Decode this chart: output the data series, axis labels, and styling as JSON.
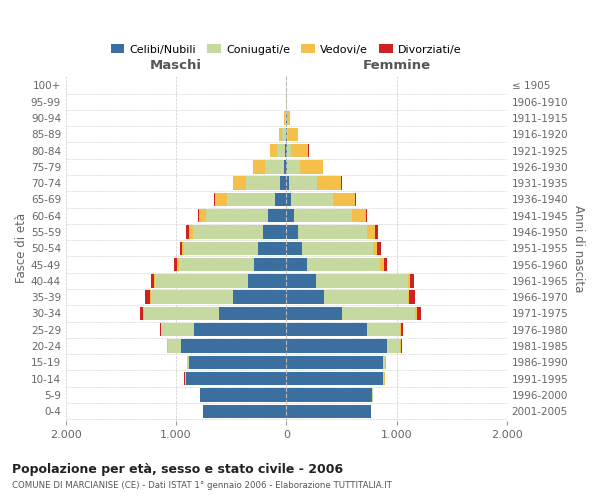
{
  "age_groups": [
    "0-4",
    "5-9",
    "10-14",
    "15-19",
    "20-24",
    "25-29",
    "30-34",
    "35-39",
    "40-44",
    "45-49",
    "50-54",
    "55-59",
    "60-64",
    "65-69",
    "70-74",
    "75-79",
    "80-84",
    "85-89",
    "90-94",
    "95-99",
    "100+"
  ],
  "birth_years": [
    "2001-2005",
    "1996-2000",
    "1991-1995",
    "1986-1990",
    "1981-1985",
    "1976-1980",
    "1971-1975",
    "1966-1970",
    "1961-1965",
    "1956-1960",
    "1951-1955",
    "1946-1950",
    "1941-1945",
    "1936-1940",
    "1931-1935",
    "1926-1930",
    "1921-1925",
    "1916-1920",
    "1911-1915",
    "1906-1910",
    "≤ 1905"
  ],
  "colors": {
    "celibe": "#3B6FA0",
    "coniugato": "#C5D9A0",
    "vedovo": "#F5C04A",
    "divorziato": "#CC2222"
  },
  "maschi_celibe": [
    760,
    780,
    910,
    880,
    960,
    840,
    610,
    480,
    345,
    290,
    260,
    210,
    165,
    105,
    55,
    20,
    10,
    5,
    2,
    0,
    0
  ],
  "maschi_coniugato": [
    0,
    5,
    10,
    20,
    115,
    295,
    685,
    750,
    845,
    685,
    665,
    635,
    565,
    435,
    315,
    175,
    75,
    30,
    10,
    2,
    0
  ],
  "maschi_vedovo": [
    0,
    1,
    2,
    2,
    5,
    5,
    6,
    11,
    12,
    17,
    22,
    42,
    63,
    105,
    112,
    105,
    62,
    32,
    6,
    1,
    0
  ],
  "maschi_divorziato": [
    0,
    1,
    2,
    2,
    5,
    10,
    30,
    40,
    30,
    25,
    20,
    20,
    10,
    10,
    5,
    4,
    2,
    2,
    0,
    0,
    0
  ],
  "femmine_nubile": [
    770,
    780,
    880,
    880,
    910,
    730,
    505,
    345,
    265,
    185,
    140,
    110,
    70,
    40,
    20,
    10,
    5,
    4,
    2,
    0,
    0
  ],
  "femmine_coniugata": [
    0,
    5,
    10,
    20,
    125,
    305,
    665,
    755,
    835,
    665,
    645,
    625,
    525,
    385,
    255,
    115,
    40,
    15,
    5,
    2,
    0
  ],
  "femmine_vedova": [
    0,
    1,
    2,
    3,
    8,
    9,
    12,
    17,
    22,
    32,
    42,
    72,
    125,
    195,
    225,
    205,
    155,
    85,
    22,
    4,
    1
  ],
  "femmine_divorziata": [
    0,
    1,
    2,
    2,
    8,
    15,
    40,
    50,
    40,
    35,
    30,
    25,
    15,
    10,
    6,
    4,
    2,
    2,
    0,
    0,
    0
  ],
  "xlim": 2000,
  "xticks": [
    -2000,
    -1000,
    0,
    1000,
    2000
  ],
  "xticklabels": [
    "2.000",
    "1.000",
    "0",
    "1.000",
    "2.000"
  ],
  "title": "Popolazione per età, sesso e stato civile - 2006",
  "subtitle": "COMUNE DI MARCIANISE (CE) - Dati ISTAT 1° gennaio 2006 - Elaborazione TUTTITALIA.IT",
  "ylabel_left": "Fasce di età",
  "ylabel_right": "Anni di nascita",
  "legend_labels": [
    "Celibi/Nubili",
    "Coniugati/e",
    "Vedovi/e",
    "Divorziati/e"
  ],
  "legend_colors": [
    "#3B6FA0",
    "#C5D9A0",
    "#F5C04A",
    "#CC2222"
  ],
  "maschi_label": "Maschi",
  "femmine_label": "Femmine",
  "background_color": "#FFFFFF",
  "grid_color": "#CCCCCC"
}
